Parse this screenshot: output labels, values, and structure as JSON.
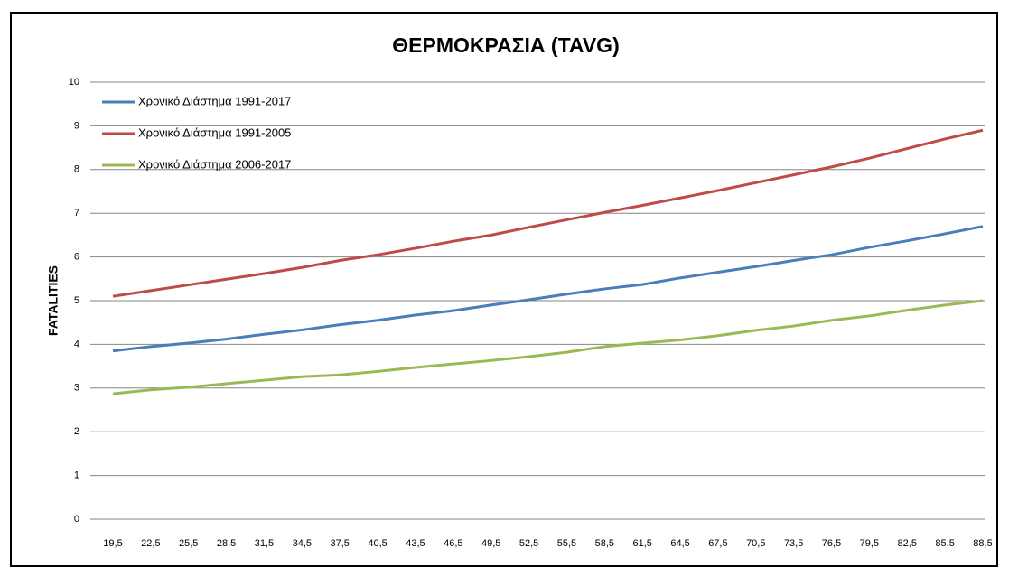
{
  "chart_data": {
    "type": "line",
    "title": "ΘΕΡΜΟΚΡΑΣΙΑ (TAVG)",
    "ylabel": "FATALITIES",
    "categories": [
      "19,5",
      "22,5",
      "25,5",
      "28,5",
      "31,5",
      "34,5",
      "37,5",
      "40,5",
      "43,5",
      "46,5",
      "49,5",
      "52,5",
      "55,5",
      "58,5",
      "61,5",
      "64,5",
      "67,5",
      "70,5",
      "73,5",
      "76,5",
      "79,5",
      "82,5",
      "85,5",
      "88,5"
    ],
    "series": [
      {
        "name": "Χρονικό Διάστημα 1991-2017",
        "color": "#4a7ebb",
        "values": [
          3.85,
          3.95,
          4.03,
          4.12,
          4.23,
          4.33,
          4.45,
          4.55,
          4.67,
          4.77,
          4.9,
          5.02,
          5.15,
          5.27,
          5.37,
          5.52,
          5.65,
          5.78,
          5.92,
          6.05,
          6.22,
          6.37,
          6.53,
          6.7
        ]
      },
      {
        "name": "Χρονικό Διάστημα 1991-2005",
        "color": "#be4b48",
        "values": [
          5.1,
          5.23,
          5.36,
          5.49,
          5.62,
          5.76,
          5.92,
          6.05,
          6.2,
          6.36,
          6.5,
          6.68,
          6.85,
          7.02,
          7.18,
          7.35,
          7.52,
          7.7,
          7.88,
          8.06,
          8.26,
          8.48,
          8.7,
          8.9
        ]
      },
      {
        "name": "Χρονικό Διάστημα 2006-2017",
        "color": "#98b954",
        "values": [
          2.87,
          2.96,
          3.02,
          3.1,
          3.18,
          3.26,
          3.3,
          3.38,
          3.47,
          3.55,
          3.63,
          3.72,
          3.82,
          3.95,
          4.03,
          4.1,
          4.2,
          4.32,
          4.42,
          4.55,
          4.65,
          4.78,
          4.9,
          5.0
        ]
      }
    ],
    "ylim": [
      0,
      10
    ],
    "yticks": [
      0,
      1,
      2,
      3,
      4,
      5,
      6,
      7,
      8,
      9,
      10
    ],
    "grid": true,
    "legend": "upper left"
  }
}
